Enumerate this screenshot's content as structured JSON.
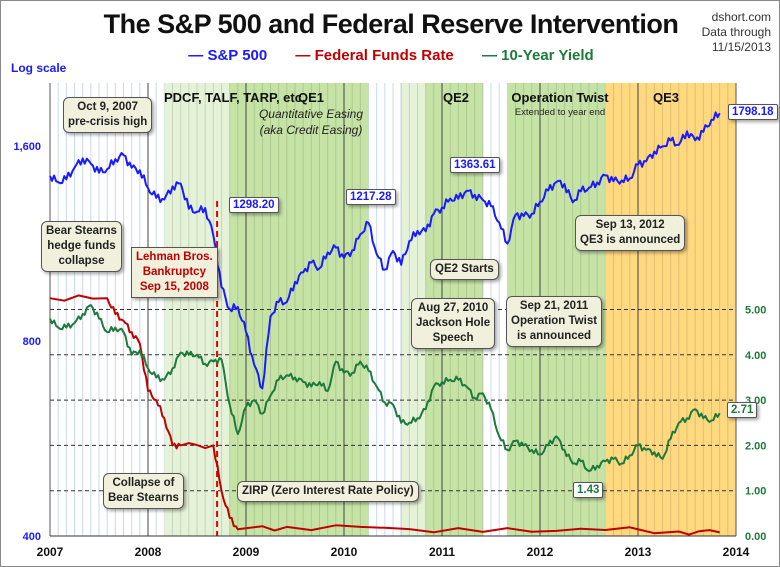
{
  "chart_data": {
    "type": "line",
    "title": "The S&P 500 and Federal Reserve Intervention",
    "source": [
      "dshort.com",
      "Data through",
      "11/15/2013"
    ],
    "left_axis_note": "Log scale",
    "x_ticks": [
      "2007",
      "2008",
      "2009",
      "2010",
      "2011",
      "2012",
      "2013",
      "2014"
    ],
    "xlim": [
      "2007-01-01",
      "2014-01-01"
    ],
    "left_axis": {
      "scale": "log",
      "ylim": [
        400,
        2000
      ],
      "ticks": [
        "400",
        "800",
        "1,600"
      ],
      "tick_values": [
        400,
        800,
        1600
      ],
      "color": "#1a1aff"
    },
    "right_axis": {
      "scale": "linear",
      "ylim": [
        0,
        5.9
      ],
      "ticks": [
        "0.00",
        "1.00",
        "2.00",
        "3.00",
        "4.00",
        "5.00"
      ],
      "tick_values": [
        0,
        1,
        2,
        3,
        4,
        5
      ],
      "color": "#1e7a3a",
      "grid": "dashed"
    },
    "colors": {
      "sp500": "#1a1aff",
      "fed": "#c00000",
      "yield": "#1e7a3a",
      "qe_green": "#c6e3a6",
      "light_green": "#e4f2d8",
      "qe3_orange": "#ffd980",
      "month_line": "#c8d8f4"
    },
    "series": [
      {
        "name": "S&P 500",
        "axis": "left",
        "color": "#1a1aff",
        "dates": [
          "2007-01",
          "2007-02",
          "2007-03",
          "2007-04",
          "2007-05",
          "2007-06",
          "2007-07",
          "2007-08",
          "2007-09",
          "2007-10",
          "2007-11",
          "2007-12",
          "2008-01",
          "2008-02",
          "2008-03",
          "2008-04",
          "2008-05",
          "2008-06",
          "2008-07",
          "2008-08",
          "2008-09",
          "2008-10",
          "2008-11",
          "2008-12",
          "2009-01",
          "2009-02",
          "2009-03",
          "2009-04",
          "2009-05",
          "2009-06",
          "2009-07",
          "2009-08",
          "2009-09",
          "2009-10",
          "2009-11",
          "2009-12",
          "2010-01",
          "2010-02",
          "2010-03",
          "2010-04",
          "2010-05",
          "2010-06",
          "2010-07",
          "2010-08",
          "2010-09",
          "2010-10",
          "2010-11",
          "2010-12",
          "2011-01",
          "2011-02",
          "2011-03",
          "2011-04",
          "2011-05",
          "2011-06",
          "2011-07",
          "2011-08",
          "2011-09",
          "2011-10",
          "2011-11",
          "2011-12",
          "2012-01",
          "2012-02",
          "2012-03",
          "2012-04",
          "2012-05",
          "2012-06",
          "2012-07",
          "2012-08",
          "2012-09",
          "2012-10",
          "2012-11",
          "2012-12",
          "2013-01",
          "2013-02",
          "2013-03",
          "2013-04",
          "2013-05",
          "2013-06",
          "2013-07",
          "2013-08",
          "2013-09",
          "2013-10",
          "2013-11"
        ],
        "values": [
          1438,
          1407,
          1421,
          1482,
          1531,
          1503,
          1455,
          1474,
          1527,
          1549,
          1481,
          1468,
          1378,
          1331,
          1323,
          1386,
          1400,
          1280,
          1267,
          1283,
          1165,
          969,
          896,
          903,
          826,
          735,
          676,
          873,
          919,
          919,
          987,
          1021,
          1057,
          1036,
          1096,
          1115,
          1074,
          1104,
          1169,
          1217,
          1089,
          1031,
          1102,
          1049,
          1141,
          1183,
          1181,
          1258,
          1286,
          1327,
          1326,
          1364,
          1345,
          1321,
          1292,
          1219,
          1131,
          1253,
          1247,
          1258,
          1312,
          1366,
          1408,
          1398,
          1310,
          1362,
          1379,
          1406,
          1441,
          1412,
          1416,
          1426,
          1498,
          1515,
          1569,
          1598,
          1631,
          1606,
          1686,
          1633,
          1682,
          1757,
          1798
        ]
      },
      {
        "name": "Federal Funds Rate",
        "axis": "right",
        "color": "#c00000",
        "dates": [
          "2007-01",
          "2007-08",
          "2007-09",
          "2007-10",
          "2007-11",
          "2007-12",
          "2008-01",
          "2008-02",
          "2008-03",
          "2008-04",
          "2008-05",
          "2008-09",
          "2008-10",
          "2008-11",
          "2008-12",
          "2009-06",
          "2010-06",
          "2011-06",
          "2012-06",
          "2013-06",
          "2013-11"
        ],
        "values": [
          5.25,
          5.25,
          4.9,
          4.75,
          4.5,
          4.25,
          3.2,
          3.0,
          2.6,
          2.0,
          2.0,
          2.0,
          1.0,
          0.4,
          0.15,
          0.2,
          0.18,
          0.09,
          0.16,
          0.1,
          0.08
        ]
      },
      {
        "name": "10-Year Yield",
        "axis": "right",
        "color": "#1e7a3a",
        "dates": [
          "2007-01",
          "2007-02",
          "2007-03",
          "2007-04",
          "2007-05",
          "2007-06",
          "2007-07",
          "2007-08",
          "2007-09",
          "2007-10",
          "2007-11",
          "2007-12",
          "2008-01",
          "2008-02",
          "2008-03",
          "2008-04",
          "2008-05",
          "2008-06",
          "2008-07",
          "2008-08",
          "2008-09",
          "2008-10",
          "2008-11",
          "2008-12",
          "2009-01",
          "2009-02",
          "2009-03",
          "2009-04",
          "2009-05",
          "2009-06",
          "2009-07",
          "2009-08",
          "2009-09",
          "2009-10",
          "2009-11",
          "2009-12",
          "2010-01",
          "2010-02",
          "2010-03",
          "2010-04",
          "2010-05",
          "2010-06",
          "2010-07",
          "2010-08",
          "2010-09",
          "2010-10",
          "2010-11",
          "2010-12",
          "2011-01",
          "2011-02",
          "2011-03",
          "2011-04",
          "2011-05",
          "2011-06",
          "2011-07",
          "2011-08",
          "2011-09",
          "2011-10",
          "2011-11",
          "2011-12",
          "2012-01",
          "2012-02",
          "2012-03",
          "2012-04",
          "2012-05",
          "2012-06",
          "2012-07",
          "2012-08",
          "2012-09",
          "2012-10",
          "2012-11",
          "2012-12",
          "2013-01",
          "2013-02",
          "2013-03",
          "2013-04",
          "2013-05",
          "2013-06",
          "2013-07",
          "2013-08",
          "2013-09",
          "2013-10",
          "2013-11"
        ],
        "values": [
          4.8,
          4.6,
          4.6,
          4.7,
          4.9,
          5.1,
          4.8,
          4.5,
          4.6,
          4.5,
          4.0,
          4.1,
          3.7,
          3.5,
          3.45,
          3.7,
          4.05,
          4.0,
          4.0,
          3.8,
          3.85,
          3.9,
          2.9,
          2.25,
          2.85,
          3.0,
          2.7,
          3.1,
          3.45,
          3.55,
          3.5,
          3.4,
          3.3,
          3.4,
          3.2,
          3.85,
          3.6,
          3.6,
          3.85,
          3.65,
          3.3,
          2.95,
          2.9,
          2.5,
          2.5,
          2.6,
          2.8,
          3.3,
          3.4,
          3.45,
          3.45,
          3.3,
          3.05,
          3.15,
          2.8,
          2.2,
          1.9,
          2.1,
          2.0,
          1.9,
          1.8,
          2.0,
          2.2,
          1.9,
          1.6,
          1.65,
          1.43,
          1.55,
          1.65,
          1.7,
          1.6,
          1.78,
          2.0,
          1.9,
          1.85,
          1.7,
          2.15,
          2.5,
          2.6,
          2.8,
          2.6,
          2.55,
          2.71
        ]
      }
    ],
    "regions": [
      {
        "label": "PDCF, TALF, TARP, etc.",
        "start": "2008-03",
        "end": "2008-11",
        "fill": "light_green"
      },
      {
        "label": "QE1",
        "sublabel": [
          "Quantitative Easing",
          "(aka Credit Easing)"
        ],
        "start": "2008-11",
        "end": "2010-04",
        "fill": "qe_green"
      },
      {
        "label": "",
        "start": "2010-08",
        "end": "2010-11",
        "fill": "light_green"
      },
      {
        "label": "QE2",
        "start": "2010-11",
        "end": "2011-06",
        "fill": "qe_green"
      },
      {
        "label": "Operation Twist",
        "sublabel": [
          "Extended to year end"
        ],
        "start": "2011-09",
        "end": "2012-09",
        "fill": "qe_green"
      },
      {
        "label": "QE3",
        "start": "2012-09",
        "end": "2014-01",
        "fill": "qe3_orange"
      }
    ],
    "event_line": {
      "date": "2008-09-15",
      "color": "#e00000"
    },
    "annotations": {
      "pre_crisis": [
        "Oct 9, 2007",
        "pre-crisis high"
      ],
      "bear_hedge": [
        "Bear Stearns",
        "hedge funds",
        "collapse"
      ],
      "lehman": [
        "Lehman Bros.",
        "Bankruptcy",
        "Sep 15, 2008"
      ],
      "bear_collapse": [
        "Collapse of",
        "Bear Stearns"
      ],
      "zirp": "ZIRP (Zero Interest Rate Policy)",
      "qe2_starts": "QE2 Starts",
      "jackson": [
        "Aug 27, 2010",
        "Jackson Hole",
        "Speech"
      ],
      "twist": [
        "Sep 21, 2011",
        "Operation Twist",
        "is announced"
      ],
      "qe3": [
        "Sep 13, 2012",
        "QE3 is announced"
      ],
      "v1298": "1298.20",
      "v1217": "1217.28",
      "v1363": "1363.61",
      "v1798": "1798.18",
      "v271": "2.71",
      "v143": "1.43"
    }
  }
}
